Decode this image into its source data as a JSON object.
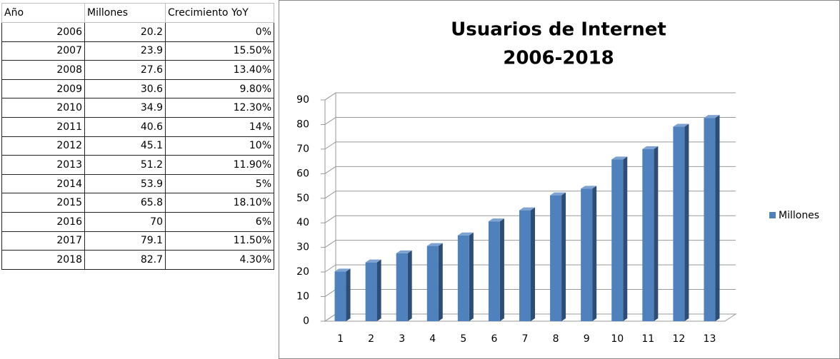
{
  "table": {
    "header": [
      "Año",
      "Millones",
      "Crecimiento YoY"
    ],
    "rows": [
      [
        "2006",
        "20.2",
        "0%"
      ],
      [
        "2007",
        "23.9",
        "15.50%"
      ],
      [
        "2008",
        "27.6",
        "13.40%"
      ],
      [
        "2009",
        "30.6",
        "9.80%"
      ],
      [
        "2010",
        "34.9",
        "12.30%"
      ],
      [
        "2011",
        "40.6",
        "14%"
      ],
      [
        "2012",
        "45.1",
        "10%"
      ],
      [
        "2013",
        "51.2",
        "11.90%"
      ],
      [
        "2014",
        "53.9",
        "5%"
      ],
      [
        "2015",
        "65.8",
        "18.10%"
      ],
      [
        "2016",
        "70",
        "6%"
      ],
      [
        "2017",
        "79.1",
        "11.50%"
      ],
      [
        "2018",
        "82.7",
        "4.30%"
      ]
    ]
  },
  "chart_data": {
    "type": "bar3d",
    "title": "Usuarios de Internet",
    "subtitle": "2006-2018",
    "categories": [
      "1",
      "2",
      "3",
      "4",
      "5",
      "6",
      "7",
      "8",
      "9",
      "10",
      "11",
      "12",
      "13"
    ],
    "series": [
      {
        "name": "Millones",
        "color": "#4f81bd",
        "values": [
          20.2,
          23.9,
          27.6,
          30.6,
          34.9,
          40.6,
          45.1,
          51.2,
          53.9,
          65.8,
          70,
          79.1,
          82.7
        ]
      }
    ],
    "ylim": [
      0,
      90
    ],
    "yticks": [
      0,
      10,
      20,
      30,
      40,
      50,
      60,
      70,
      80,
      90
    ],
    "grid": true,
    "legend": "right"
  }
}
